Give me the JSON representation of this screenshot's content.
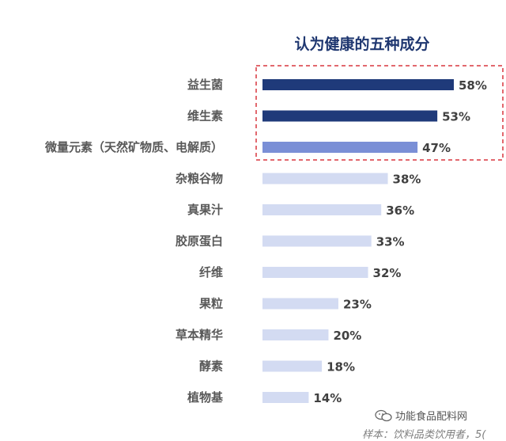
{
  "chart_data": {
    "type": "bar",
    "orientation": "horizontal",
    "title": "认为健康的五种成分",
    "categories": [
      "益生菌",
      "维生素",
      "微量元素（天然矿物质、电解质）",
      "杂粮谷物",
      "真果汁",
      "胶原蛋白",
      "纤维",
      "果粒",
      "草本精华",
      "酵素",
      "植物基"
    ],
    "values": [
      58,
      53,
      47,
      38,
      36,
      33,
      32,
      23,
      20,
      18,
      14
    ],
    "value_labels": [
      "58%",
      "53%",
      "47%",
      "38%",
      "36%",
      "33%",
      "32%",
      "23%",
      "20%",
      "18%",
      "14%"
    ],
    "unit": "%",
    "highlighted_top": 3,
    "grid": false,
    "colors": {
      "top_dark": "#1f3a7a",
      "top_mid": "#7a8fd6",
      "rest": "#d3dbf2",
      "highlight_box": "#d9363e",
      "title": "#1f3770"
    }
  },
  "footnote": "样本：饮料品类饮用者，5(",
  "watermark": {
    "text": "功能食品配料网",
    "icon": "wechat-icon"
  }
}
